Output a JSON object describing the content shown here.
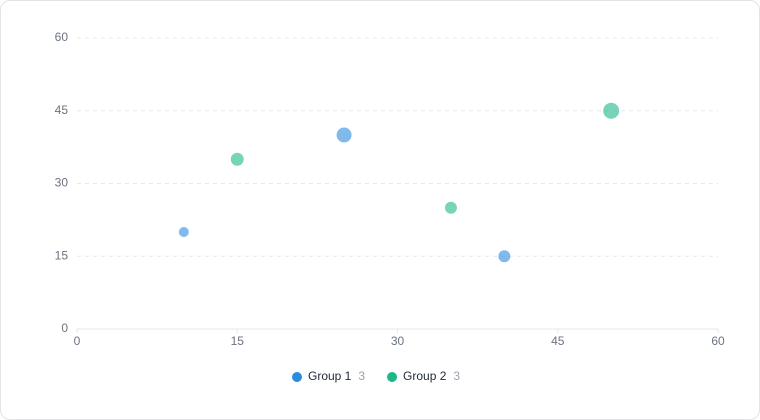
{
  "chart_data": {
    "type": "bubble",
    "series": [
      {
        "name": "Group 1",
        "color": "#2b8be0",
        "count": 3,
        "x": [
          10,
          25,
          40
        ],
        "values": [
          20,
          40,
          15
        ],
        "sizes": [
          10,
          15,
          12
        ]
      },
      {
        "name": "Group 2",
        "color": "#1db88a",
        "count": 3,
        "x": [
          15,
          35,
          50
        ],
        "values": [
          35,
          25,
          45
        ],
        "sizes": [
          13,
          12,
          16
        ]
      }
    ],
    "xlim": [
      0,
      60
    ],
    "xticks": [
      0,
      15,
      30,
      45,
      60
    ],
    "ylim": [
      0,
      60
    ],
    "yticks": [
      0,
      15,
      30,
      45,
      60
    ],
    "grid": true,
    "legend": "bottom"
  }
}
